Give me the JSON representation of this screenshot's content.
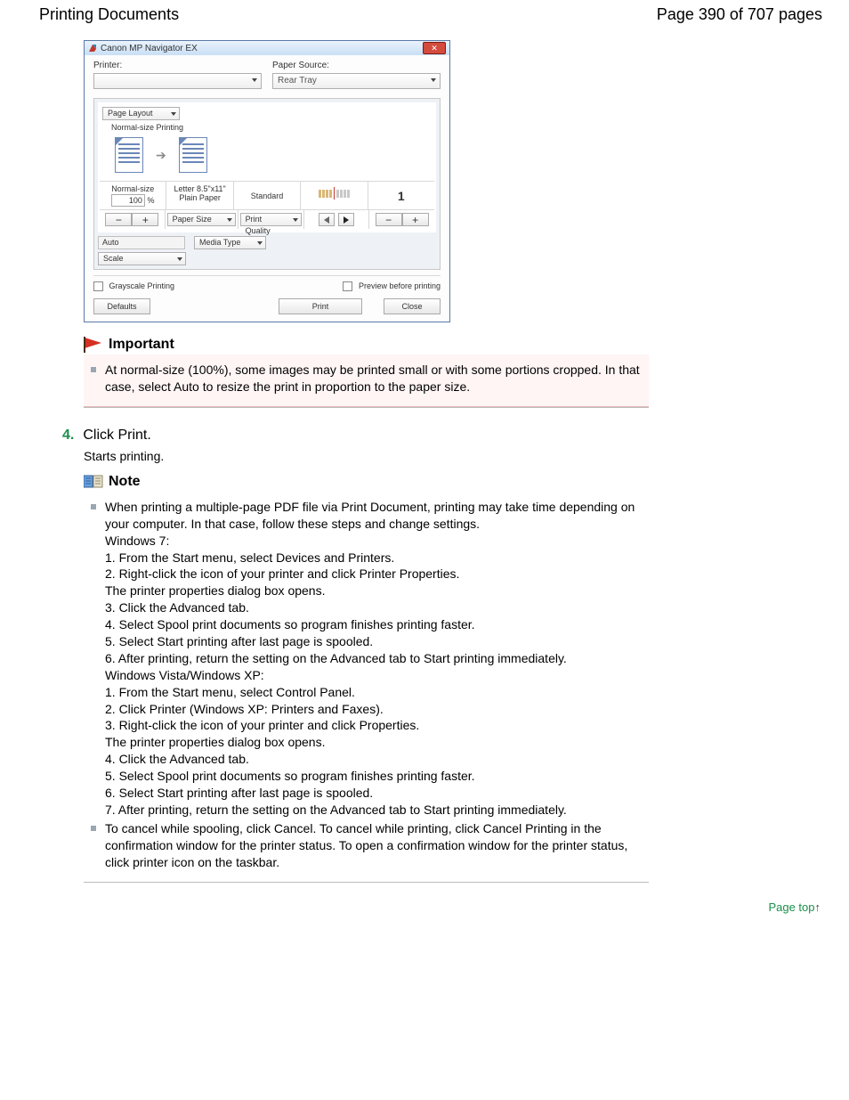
{
  "header": {
    "title": "Printing Documents",
    "page_counter": "Page 390 of 707 pages"
  },
  "dialog": {
    "window_title": "Canon MP Navigator EX",
    "printer_label": "Printer:",
    "printer_value": "",
    "paper_source_label": "Paper Source:",
    "paper_source_value": "Rear Tray",
    "page_layout_label": "Page Layout",
    "normal_size_printing": "Normal-size Printing",
    "col1_top": "Normal-size",
    "col1_val": "100",
    "col1_unit": "%",
    "col2_top": "Letter 8.5\"x11\"",
    "col2_bottom": "Plain Paper",
    "col3": "Standard",
    "col5": "1",
    "paper_size_label": "Paper Size",
    "print_quality_label": "Print Quality",
    "media_type_label": "Media Type",
    "auto_label": "Auto",
    "scale_label": "Scale",
    "grayscale_label": "Grayscale Printing",
    "preview_label": "Preview before printing",
    "defaults_btn": "Defaults",
    "print_btn": "Print",
    "close_btn": "Close"
  },
  "important": {
    "heading": "Important",
    "text": "At normal-size (100%), some images may be printed small or with some portions cropped. In that case, select Auto to resize the print in proportion to the paper size."
  },
  "step4": {
    "num": "4.",
    "title": "Click Print.",
    "sub": "Starts printing."
  },
  "note": {
    "heading": "Note",
    "bullet1_lines": [
      "When printing a multiple-page PDF file via Print Document, printing may take time depending on your computer. In that case, follow these steps and change settings.",
      "Windows 7:",
      "1. From the Start menu, select Devices and Printers.",
      "2. Right-click the icon of your printer and click Printer Properties.",
      "The printer properties dialog box opens.",
      "3. Click the Advanced tab.",
      "4. Select Spool print documents so program finishes printing faster.",
      "5. Select Start printing after last page is spooled.",
      "6. After printing, return the setting on the Advanced tab to Start printing immediately.",
      "Windows Vista/Windows XP:",
      "1. From the Start menu, select Control Panel.",
      "2. Click Printer (Windows XP: Printers and Faxes).",
      "3. Right-click the icon of your printer and click Properties.",
      "The printer properties dialog box opens.",
      "4. Click the Advanced tab.",
      "5. Select Spool print documents so program finishes printing faster.",
      "6. Select Start printing after last page is spooled.",
      "7. After printing, return the setting on the Advanced tab to Start printing immediately."
    ],
    "bullet2": "To cancel while spooling, click Cancel. To cancel while printing, click Cancel Printing in the confirmation window for the printer status. To open a confirmation window for the printer status, click printer icon on the taskbar."
  },
  "pagetop": {
    "text": "Page top"
  }
}
